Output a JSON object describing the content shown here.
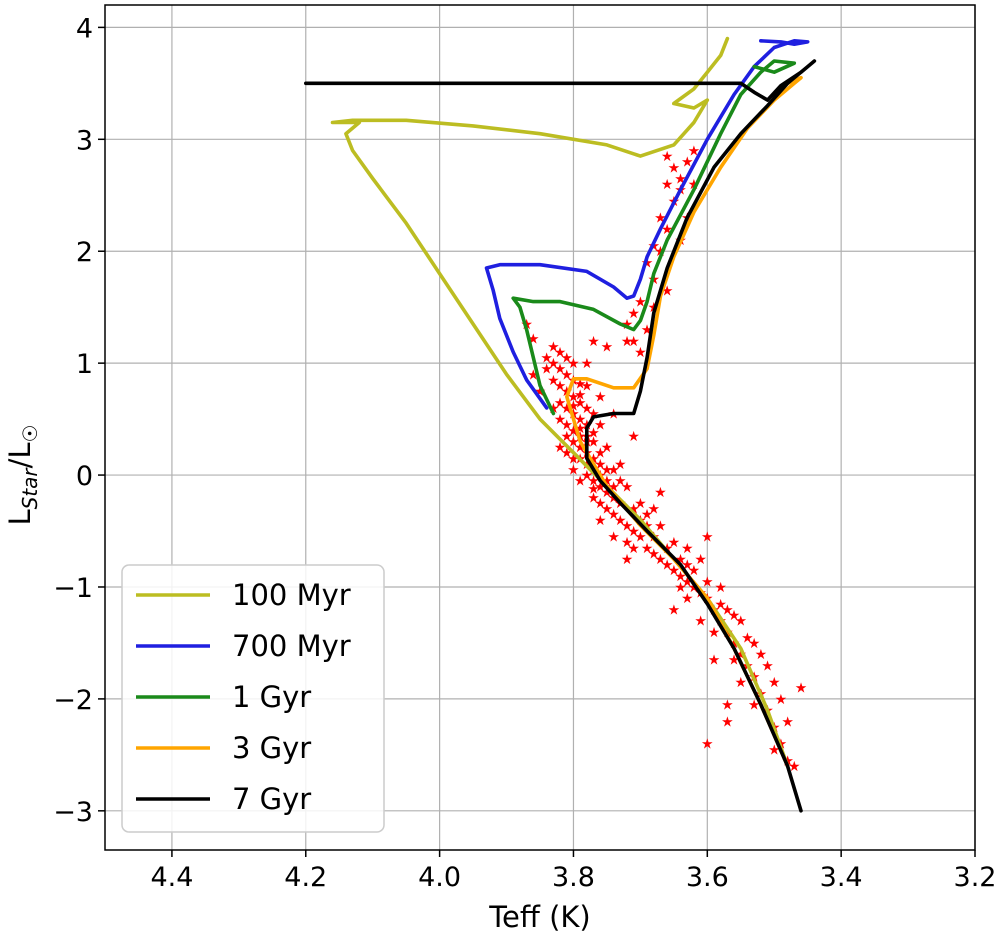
{
  "chart_data": {
    "type": "line",
    "title": "",
    "xlabel": "Teff (K)",
    "ylabel_main": "L",
    "ylabel_sub": "Star",
    "ylabel_suffix": "/L",
    "ylabel_sun_sub": "☉",
    "xlim": [
      4.5,
      3.2
    ],
    "ylim": [
      -3.35,
      4.2
    ],
    "x_ticks": [
      4.4,
      4.2,
      4.0,
      3.8,
      3.6,
      3.4,
      3.2
    ],
    "x_tick_labels": [
      "4.4",
      "4.2",
      "4.0",
      "3.8",
      "3.6",
      "3.4",
      "3.2"
    ],
    "y_ticks": [
      4,
      3,
      2,
      1,
      0,
      -1,
      -2,
      -3
    ],
    "y_tick_labels": [
      "4",
      "3",
      "2",
      "1",
      "0",
      "−1",
      "−2",
      "−3"
    ],
    "grid": true,
    "legend_position": "bottom-left",
    "series": [
      {
        "name": "100 Myr",
        "color": "#bcbd22",
        "x": [
          3.48,
          3.51,
          3.55,
          3.6,
          3.65,
          3.7,
          3.75,
          3.8,
          3.85,
          3.9,
          3.95,
          4.0,
          4.05,
          4.1,
          4.13,
          4.14,
          4.13,
          4.12,
          4.16,
          4.13,
          4.05,
          3.95,
          3.85,
          3.75,
          3.7,
          3.65,
          3.62,
          3.61,
          3.6,
          3.62,
          3.65,
          3.62,
          3.6,
          3.58,
          3.57
        ],
        "y": [
          -2.6,
          -2.1,
          -1.55,
          -1.1,
          -0.75,
          -0.4,
          -0.1,
          0.2,
          0.5,
          0.9,
          1.35,
          1.8,
          2.25,
          2.65,
          2.9,
          3.05,
          3.1,
          3.15,
          3.15,
          3.17,
          3.17,
          3.12,
          3.05,
          2.95,
          2.85,
          2.95,
          3.15,
          3.25,
          3.35,
          3.28,
          3.32,
          3.45,
          3.6,
          3.75,
          3.9
        ]
      },
      {
        "name": "700 Myr",
        "color": "#1f1fe0",
        "x": [
          3.84,
          3.87,
          3.89,
          3.91,
          3.92,
          3.93,
          3.91,
          3.85,
          3.78,
          3.74,
          3.72,
          3.71,
          3.7,
          3.69,
          3.67,
          3.64,
          3.6,
          3.56,
          3.53,
          3.5,
          3.47,
          3.45,
          3.47,
          3.49,
          3.52
        ],
        "y": [
          0.6,
          0.85,
          1.1,
          1.4,
          1.65,
          1.85,
          1.88,
          1.88,
          1.82,
          1.68,
          1.58,
          1.6,
          1.75,
          1.95,
          2.2,
          2.55,
          3.0,
          3.4,
          3.65,
          3.82,
          3.88,
          3.87,
          3.85,
          3.87,
          3.88
        ]
      },
      {
        "name": "1 Gyr",
        "color": "#1a8a1a",
        "x": [
          3.83,
          3.85,
          3.86,
          3.87,
          3.88,
          3.89,
          3.86,
          3.82,
          3.77,
          3.73,
          3.71,
          3.7,
          3.69,
          3.68,
          3.66,
          3.62,
          3.58,
          3.55,
          3.52,
          3.5,
          3.47,
          3.5,
          3.53
        ],
        "y": [
          0.55,
          0.8,
          1.05,
          1.3,
          1.5,
          1.58,
          1.55,
          1.55,
          1.48,
          1.35,
          1.3,
          1.38,
          1.55,
          1.8,
          2.1,
          2.55,
          3.05,
          3.4,
          3.6,
          3.7,
          3.68,
          3.6,
          3.65
        ]
      },
      {
        "name": "3 Gyr",
        "color": "#ffa500",
        "x": [
          3.48,
          3.52,
          3.56,
          3.6,
          3.65,
          3.7,
          3.75,
          3.79,
          3.81,
          3.8,
          3.78,
          3.74,
          3.71,
          3.69,
          3.68,
          3.67,
          3.65,
          3.62,
          3.58,
          3.54,
          3.5,
          3.47,
          3.46,
          3.48
        ],
        "y": [
          -2.6,
          -2.05,
          -1.55,
          -1.1,
          -0.75,
          -0.45,
          -0.1,
          0.3,
          0.7,
          0.86,
          0.86,
          0.78,
          0.78,
          0.95,
          1.25,
          1.6,
          1.95,
          2.35,
          2.75,
          3.1,
          3.35,
          3.5,
          3.55,
          3.5
        ]
      },
      {
        "name": "7 Gyr",
        "color": "#000000",
        "x": [
          3.46,
          3.48,
          3.52,
          3.56,
          3.6,
          3.64,
          3.69,
          3.73,
          3.76,
          3.78,
          3.78,
          3.77,
          3.74,
          3.71,
          3.7,
          3.69,
          3.68,
          3.66,
          3.63,
          3.59,
          3.55,
          3.51,
          3.48,
          3.45,
          3.44,
          3.46,
          3.49,
          3.51,
          3.53,
          3.55,
          3.6,
          3.8,
          4.0,
          4.2
        ],
        "y": [
          -3.0,
          -2.6,
          -2.05,
          -1.55,
          -1.15,
          -0.8,
          -0.5,
          -0.25,
          -0.05,
          0.15,
          0.42,
          0.52,
          0.55,
          0.55,
          0.75,
          1.05,
          1.45,
          1.85,
          2.3,
          2.75,
          3.05,
          3.3,
          3.5,
          3.65,
          3.7,
          3.6,
          3.48,
          3.35,
          3.42,
          3.5,
          3.5,
          3.5,
          3.5,
          3.5
        ]
      }
    ],
    "scatter_color": "#ff0000",
    "scatter_marker": "★",
    "scatter_points": [
      [
        3.87,
        1.35
      ],
      [
        3.86,
        1.22
      ],
      [
        3.84,
        1.05
      ],
      [
        3.83,
        1.0
      ],
      [
        3.82,
        0.95
      ],
      [
        3.81,
        0.9
      ],
      [
        3.8,
        0.85
      ],
      [
        3.79,
        0.82
      ],
      [
        3.78,
        0.8
      ],
      [
        3.84,
        0.95
      ],
      [
        3.83,
        0.85
      ],
      [
        3.82,
        0.8
      ],
      [
        3.81,
        0.75
      ],
      [
        3.8,
        0.7
      ],
      [
        3.79,
        0.65
      ],
      [
        3.82,
        0.65
      ],
      [
        3.81,
        0.6
      ],
      [
        3.8,
        0.55
      ],
      [
        3.79,
        0.5
      ],
      [
        3.78,
        0.45
      ],
      [
        3.82,
        0.5
      ],
      [
        3.81,
        0.45
      ],
      [
        3.8,
        0.4
      ],
      [
        3.79,
        0.35
      ],
      [
        3.78,
        0.3
      ],
      [
        3.77,
        0.3
      ],
      [
        3.8,
        0.3
      ],
      [
        3.79,
        0.25
      ],
      [
        3.78,
        0.2
      ],
      [
        3.77,
        0.15
      ],
      [
        3.76,
        0.1
      ],
      [
        3.79,
        0.15
      ],
      [
        3.78,
        0.1
      ],
      [
        3.77,
        0.05
      ],
      [
        3.76,
        0.0
      ],
      [
        3.75,
        -0.05
      ],
      [
        3.78,
        0.0
      ],
      [
        3.77,
        -0.05
      ],
      [
        3.76,
        -0.1
      ],
      [
        3.75,
        -0.15
      ],
      [
        3.74,
        -0.2
      ],
      [
        3.73,
        -0.25
      ],
      [
        3.76,
        -0.25
      ],
      [
        3.75,
        -0.3
      ],
      [
        3.74,
        -0.35
      ],
      [
        3.73,
        -0.4
      ],
      [
        3.72,
        -0.45
      ],
      [
        3.71,
        -0.5
      ],
      [
        3.7,
        -0.55
      ],
      [
        3.72,
        -0.6
      ],
      [
        3.71,
        -0.65
      ],
      [
        3.69,
        -0.65
      ],
      [
        3.68,
        -0.7
      ],
      [
        3.67,
        -0.75
      ],
      [
        3.66,
        -0.8
      ],
      [
        3.65,
        -0.85
      ],
      [
        3.64,
        -0.9
      ],
      [
        3.63,
        -0.95
      ],
      [
        3.62,
        -1.0
      ],
      [
        3.61,
        -1.05
      ],
      [
        3.6,
        -1.1
      ],
      [
        3.59,
        -1.2
      ],
      [
        3.58,
        -1.3
      ],
      [
        3.57,
        -1.4
      ],
      [
        3.56,
        -1.5
      ],
      [
        3.55,
        -1.6
      ],
      [
        3.54,
        -1.7
      ],
      [
        3.53,
        -1.8
      ],
      [
        3.52,
        -1.95
      ],
      [
        3.51,
        -2.1
      ],
      [
        3.5,
        -2.25
      ],
      [
        3.49,
        -2.4
      ],
      [
        3.48,
        -2.55
      ],
      [
        3.47,
        -2.6
      ],
      [
        3.72,
        -0.75
      ],
      [
        3.66,
        -0.65
      ],
      [
        3.62,
        -0.85
      ],
      [
        3.58,
        -1.0
      ],
      [
        3.56,
        -1.25
      ],
      [
        3.54,
        -1.45
      ],
      [
        3.52,
        -1.6
      ],
      [
        3.5,
        -1.85
      ],
      [
        3.46,
        -1.9
      ],
      [
        3.57,
        -2.05
      ],
      [
        3.57,
        -2.2
      ],
      [
        3.6,
        -2.4
      ],
      [
        3.59,
        -1.65
      ],
      [
        3.65,
        -1.2
      ],
      [
        3.63,
        -0.65
      ],
      [
        3.6,
        -0.55
      ],
      [
        3.69,
        -0.35
      ],
      [
        3.67,
        -0.15
      ],
      [
        3.73,
        0.1
      ],
      [
        3.71,
        0.35
      ],
      [
        3.74,
        0.55
      ],
      [
        3.76,
        0.7
      ],
      [
        3.78,
        1.0
      ],
      [
        3.77,
        1.2
      ],
      [
        3.75,
        1.15
      ],
      [
        3.7,
        1.1
      ],
      [
        3.72,
        1.2
      ],
      [
        3.69,
        1.3
      ],
      [
        3.7,
        1.55
      ],
      [
        3.68,
        1.75
      ],
      [
        3.67,
        2.0
      ],
      [
        3.66,
        2.2
      ],
      [
        3.65,
        2.45
      ],
      [
        3.64,
        2.65
      ],
      [
        3.65,
        2.75
      ],
      [
        3.67,
        2.3
      ],
      [
        3.68,
        2.05
      ],
      [
        3.69,
        1.9
      ],
      [
        3.71,
        1.45
      ],
      [
        3.62,
        2.9
      ],
      [
        3.64,
        2.55
      ],
      [
        3.66,
        2.6
      ],
      [
        3.83,
        0.6
      ],
      [
        3.81,
        0.2
      ],
      [
        3.8,
        0.05
      ],
      [
        3.79,
        -0.05
      ],
      [
        3.74,
        -0.55
      ],
      [
        3.76,
        -0.4
      ],
      [
        3.77,
        -0.2
      ],
      [
        3.75,
        0.25
      ],
      [
        3.76,
        0.45
      ],
      [
        3.83,
        1.15
      ],
      [
        3.75,
        0.05
      ],
      [
        3.74,
        -0.1
      ],
      [
        3.73,
        -0.05
      ],
      [
        3.7,
        -0.25
      ],
      [
        3.69,
        -0.45
      ],
      [
        3.68,
        -0.55
      ],
      [
        3.67,
        -0.45
      ],
      [
        3.65,
        -0.6
      ],
      [
        3.64,
        -0.75
      ],
      [
        3.63,
        -0.8
      ],
      [
        3.61,
        -0.75
      ],
      [
        3.6,
        -0.95
      ],
      [
        3.58,
        -1.15
      ],
      [
        3.57,
        -1.2
      ],
      [
        3.55,
        -1.3
      ],
      [
        3.53,
        -1.5
      ],
      [
        3.51,
        -1.7
      ],
      [
        3.49,
        -2.0
      ],
      [
        3.48,
        -2.2
      ],
      [
        3.5,
        -2.45
      ],
      [
        3.53,
        -2.05
      ],
      [
        3.55,
        -1.85
      ],
      [
        3.56,
        -1.65
      ],
      [
        3.59,
        -1.4
      ],
      [
        3.61,
        -1.3
      ],
      [
        3.63,
        -1.1
      ],
      [
        3.64,
        -1.0
      ],
      [
        3.78,
        0.6
      ],
      [
        3.77,
        0.55
      ],
      [
        3.79,
        0.72
      ],
      [
        3.8,
        0.62
      ],
      [
        3.81,
        0.35
      ],
      [
        3.82,
        0.25
      ],
      [
        3.8,
        0.15
      ],
      [
        3.77,
        0.38
      ],
      [
        3.76,
        0.2
      ],
      [
        3.79,
        0.42
      ],
      [
        3.78,
        0.35
      ],
      [
        3.77,
        -0.12
      ],
      [
        3.74,
        0.05
      ],
      [
        3.72,
        -0.1
      ],
      [
        3.71,
        -0.3
      ],
      [
        3.7,
        -0.4
      ],
      [
        3.68,
        -0.3
      ],
      [
        3.85,
        0.75
      ],
      [
        3.86,
        0.9
      ],
      [
        3.82,
        1.1
      ],
      [
        3.81,
        1.05
      ],
      [
        3.8,
        1.0
      ],
      [
        3.72,
        1.35
      ],
      [
        3.71,
        1.2
      ],
      [
        3.68,
        1.5
      ],
      [
        3.66,
        1.65
      ],
      [
        3.64,
        2.1
      ],
      [
        3.63,
        2.3
      ],
      [
        3.66,
        2.85
      ],
      [
        3.63,
        2.8
      ],
      [
        3.62,
        2.6
      ]
    ]
  }
}
